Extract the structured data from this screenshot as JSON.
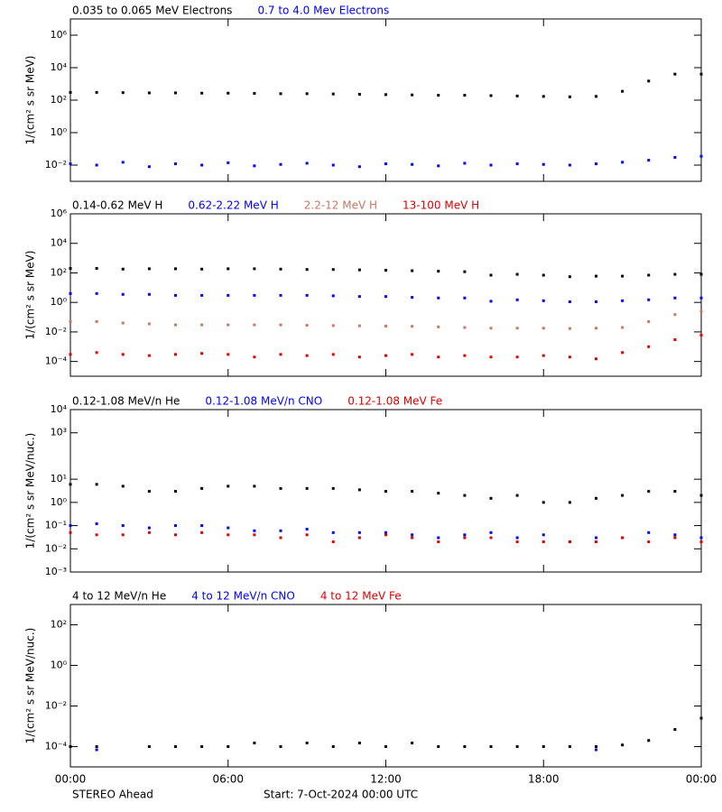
{
  "chart_data": [
    {
      "type": "scatter",
      "log": true,
      "ylabel": "1/(cm² s sr MeV)",
      "x": [
        0,
        1,
        2,
        3,
        4,
        5,
        6,
        7,
        8,
        9,
        10,
        11,
        12,
        13,
        14,
        15,
        16,
        17,
        18,
        19,
        20,
        21,
        22,
        23,
        24
      ],
      "xlim": [
        0,
        24
      ],
      "ylim": [
        0.001,
        10000000
      ],
      "yticks": [
        {
          "value": 0.01,
          "label": "10⁻²"
        },
        {
          "value": 1,
          "label": "10⁰"
        },
        {
          "value": 100,
          "label": "10²"
        },
        {
          "value": 10000,
          "label": "10⁴"
        },
        {
          "value": 1000000,
          "label": "10⁶"
        }
      ],
      "series": [
        {
          "name": "0.035 to 0.065 MeV Electrons",
          "color": "#000000",
          "values": [
            300,
            300,
            290,
            280,
            280,
            270,
            270,
            260,
            250,
            250,
            240,
            230,
            220,
            210,
            200,
            200,
            190,
            180,
            170,
            160,
            170,
            350,
            1500,
            4000,
            4000
          ]
        },
        {
          "name": "0.7 to 4.0 Mev Electrons",
          "color": "#0000ff",
          "values": [
            0.012,
            0.01,
            0.015,
            0.008,
            0.012,
            0.01,
            0.014,
            0.009,
            0.011,
            0.013,
            0.01,
            0.008,
            0.012,
            0.011,
            0.009,
            0.013,
            0.01,
            0.012,
            0.011,
            0.01,
            0.012,
            0.015,
            0.02,
            0.03,
            0.035
          ]
        }
      ]
    },
    {
      "type": "scatter",
      "log": true,
      "ylabel": "1/(cm² s sr MeV)",
      "x": [
        0,
        1,
        2,
        3,
        4,
        5,
        6,
        7,
        8,
        9,
        10,
        11,
        12,
        13,
        14,
        15,
        16,
        17,
        18,
        19,
        20,
        21,
        22,
        23,
        24
      ],
      "xlim": [
        0,
        24
      ],
      "ylim": [
        1e-05,
        1000000
      ],
      "yticks": [
        {
          "value": 0.0001,
          "label": "10⁻⁴"
        },
        {
          "value": 0.01,
          "label": "10⁻²"
        },
        {
          "value": 1,
          "label": "10⁰"
        },
        {
          "value": 100,
          "label": "10²"
        },
        {
          "value": 10000,
          "label": "10⁴"
        },
        {
          "value": 1000000,
          "label": "10⁶"
        }
      ],
      "series": [
        {
          "name": "0.14-0.62 MeV H",
          "color": "#000000",
          "values": [
            200,
            200,
            180,
            190,
            190,
            180,
            190,
            190,
            180,
            170,
            170,
            160,
            150,
            140,
            130,
            120,
            70,
            80,
            70,
            55,
            60,
            60,
            70,
            80,
            80
          ]
        },
        {
          "name": "0.62-2.22 MeV H",
          "color": "#0000ff",
          "values": [
            4,
            4,
            3.5,
            3.5,
            3,
            3,
            3,
            3,
            3,
            3,
            2.8,
            2.5,
            2.5,
            2.2,
            2,
            2,
            1.2,
            1.5,
            1.3,
            1.1,
            1.1,
            1.3,
            1.5,
            2,
            2
          ]
        },
        {
          "name": "2.2-12 MeV H",
          "color": "#c87864",
          "values": [
            0.05,
            0.05,
            0.04,
            0.035,
            0.03,
            0.03,
            0.03,
            0.03,
            0.03,
            0.028,
            0.027,
            0.026,
            0.025,
            0.024,
            0.022,
            0.02,
            0.018,
            0.018,
            0.018,
            0.017,
            0.018,
            0.02,
            0.05,
            0.15,
            0.25
          ]
        },
        {
          "name": "13-100 MeV H",
          "color": "#e00000",
          "values": [
            0.0003,
            0.0004,
            0.0003,
            0.00025,
            0.0003,
            0.00035,
            0.0003,
            0.0002,
            0.0003,
            0.00025,
            0.0003,
            0.0002,
            0.00025,
            0.0003,
            0.0002,
            0.00025,
            0.0002,
            0.0002,
            0.00025,
            0.0002,
            0.00015,
            0.0004,
            0.001,
            0.003,
            0.006
          ]
        }
      ]
    },
    {
      "type": "scatter",
      "log": true,
      "ylabel": "1/(cm² s sr MeV/nuc.)",
      "x": [
        0,
        1,
        2,
        3,
        4,
        5,
        6,
        7,
        8,
        9,
        10,
        11,
        12,
        13,
        14,
        15,
        16,
        17,
        18,
        19,
        20,
        21,
        22,
        23,
        24
      ],
      "xlim": [
        0,
        24
      ],
      "ylim": [
        0.001,
        10000
      ],
      "yticks": [
        {
          "value": 0.001,
          "label": "10⁻³"
        },
        {
          "value": 0.01,
          "label": "10⁻²"
        },
        {
          "value": 0.1,
          "label": "10⁻¹"
        },
        {
          "value": 1,
          "label": "10⁰"
        },
        {
          "value": 10,
          "label": "10¹"
        },
        {
          "value": 1000,
          "label": "10³"
        },
        {
          "value": 10000,
          "label": "10⁴"
        }
      ],
      "series": [
        {
          "name": "0.12-1.08 MeV/n He",
          "color": "#000000",
          "values": [
            6,
            6,
            5,
            3,
            3,
            4,
            5,
            5,
            4,
            4,
            4,
            3.5,
            3,
            3,
            2.5,
            2,
            1.5,
            2,
            1,
            1,
            1.5,
            2,
            3,
            3,
            2
          ]
        },
        {
          "name": "0.12-1.08 MeV/n CNO",
          "color": "#0000ff",
          "values": [
            0.1,
            0.12,
            0.1,
            0.08,
            0.1,
            0.1,
            0.08,
            0.06,
            0.06,
            0.07,
            0.05,
            0.05,
            0.05,
            0.04,
            0.03,
            0.04,
            0.05,
            0.03,
            0.04,
            0.02,
            0.03,
            0.03,
            0.05,
            0.04,
            0.03
          ]
        },
        {
          "name": "0.12-1.08 MeV Fe",
          "color": "#e00000",
          "values": [
            0.05,
            0.04,
            0.04,
            0.05,
            0.04,
            0.05,
            0.04,
            0.04,
            0.03,
            0.04,
            0.02,
            0.03,
            0.04,
            0.03,
            0.02,
            0.03,
            0.03,
            0.02,
            0.02,
            0.02,
            0.02,
            0.03,
            0.02,
            0.03,
            0.02
          ]
        }
      ]
    },
    {
      "type": "scatter",
      "log": true,
      "ylabel": "1/(cm² s sr MeV/nuc.)",
      "x": [
        0,
        1,
        2,
        3,
        4,
        5,
        6,
        7,
        8,
        9,
        10,
        11,
        12,
        13,
        14,
        15,
        16,
        17,
        18,
        19,
        20,
        21,
        22,
        23,
        24
      ],
      "xlim": [
        0,
        24
      ],
      "ylim": [
        1e-05,
        1000
      ],
      "xticks": [
        {
          "value": 0,
          "label": "00:00"
        },
        {
          "value": 6,
          "label": "06:00"
        },
        {
          "value": 12,
          "label": "12:00"
        },
        {
          "value": 18,
          "label": "18:00"
        },
        {
          "value": 24,
          "label": "00:00"
        }
      ],
      "yticks": [
        {
          "value": 0.0001,
          "label": "10⁻⁴"
        },
        {
          "value": 0.01,
          "label": "10⁻²"
        },
        {
          "value": 1,
          "label": "10⁰"
        },
        {
          "value": 100,
          "label": "10²"
        }
      ],
      "series": [
        {
          "name": "4 to 12 MeV/n He",
          "color": "#000000",
          "values": [
            0.0001,
            0.0001,
            null,
            0.0001,
            0.0001,
            0.0001,
            0.0001,
            0.00015,
            0.0001,
            0.00015,
            0.0001,
            0.00015,
            0.0001,
            0.00015,
            0.0001,
            0.0001,
            0.0001,
            0.0001,
            0.0001,
            0.0001,
            0.0001,
            0.00012,
            0.0002,
            0.0007,
            0.0025
          ]
        },
        {
          "name": "4 to 12 MeV/n CNO",
          "color": "#0000ff",
          "values": [
            null,
            7e-05,
            null,
            null,
            null,
            null,
            null,
            null,
            null,
            null,
            null,
            null,
            null,
            null,
            null,
            null,
            null,
            null,
            null,
            null,
            7e-05,
            null,
            null,
            null,
            null
          ]
        },
        {
          "name": "4 to 12 MeV Fe",
          "color": "#e00000",
          "values": [
            null,
            null,
            null,
            null,
            null,
            null,
            null,
            null,
            null,
            null,
            null,
            null,
            null,
            null,
            null,
            null,
            null,
            null,
            null,
            null,
            null,
            null,
            null,
            null,
            null
          ]
        }
      ]
    }
  ],
  "footer": {
    "left": "STEREO Ahead",
    "right": "Start:  7-Oct-2024 00:00 UTC"
  }
}
